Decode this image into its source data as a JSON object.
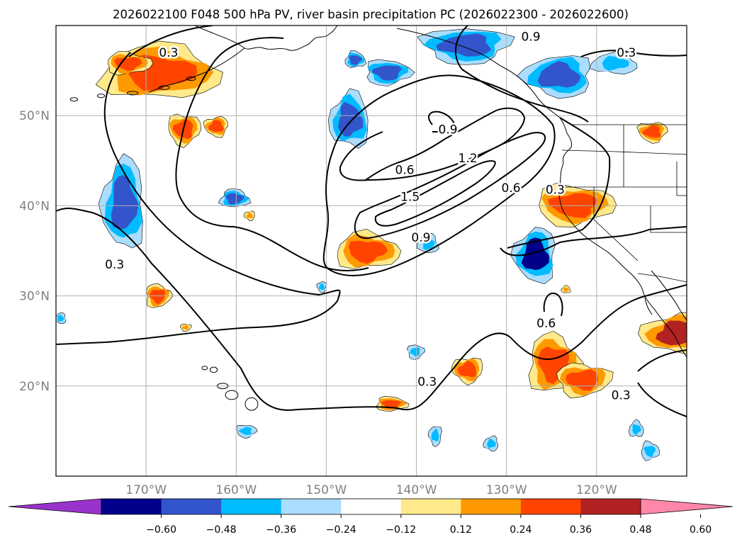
{
  "title": "2026022100 F048 500 hPa PV, river basin precipitation PC (2026022300 - 2026022600)",
  "map": {
    "lon_range": [
      -180,
      -110
    ],
    "lat_range": [
      10,
      60
    ],
    "lon_ticks": [
      {
        "value": -170,
        "label": "170°W"
      },
      {
        "value": -160,
        "label": "160°W"
      },
      {
        "value": -150,
        "label": "150°W"
      },
      {
        "value": -140,
        "label": "140°W"
      },
      {
        "value": -130,
        "label": "130°W"
      },
      {
        "value": -120,
        "label": "120°W"
      }
    ],
    "lat_ticks": [
      {
        "value": 20,
        "label": "20°N"
      },
      {
        "value": 30,
        "label": "30°N"
      },
      {
        "value": 40,
        "label": "40°N"
      },
      {
        "value": 50,
        "label": "50°N"
      }
    ],
    "gridlines": true,
    "colors": {
      "coast": "#000000",
      "grid": "#b0b0b0",
      "tick_label": "#808080",
      "contour": "#000000"
    }
  },
  "pv_contours": {
    "levels": [
      0.3,
      0.6,
      0.9,
      1.2,
      1.5
    ],
    "labels": [
      {
        "text": "0.3",
        "lon": -167.5,
        "lat": 57.0
      },
      {
        "text": "0.3",
        "lon": -173.5,
        "lat": 33.5
      },
      {
        "text": "0.3",
        "lon": -138.8,
        "lat": 20.5
      },
      {
        "text": "0.3",
        "lon": -117.3,
        "lat": 19.0
      },
      {
        "text": "0.3",
        "lon": -116.7,
        "lat": 57.0
      },
      {
        "text": "0.9",
        "lon": -127.3,
        "lat": 58.8
      },
      {
        "text": "0.9",
        "lon": -136.5,
        "lat": 48.5
      },
      {
        "text": "1.2",
        "lon": -134.3,
        "lat": 45.3
      },
      {
        "text": "0.6",
        "lon": -141.3,
        "lat": 44.0
      },
      {
        "text": "1.5",
        "lon": -140.7,
        "lat": 41.0
      },
      {
        "text": "0.6",
        "lon": -129.5,
        "lat": 42.0
      },
      {
        "text": "0.9",
        "lon": -139.5,
        "lat": 36.5
      },
      {
        "text": "0.6",
        "lon": -125.6,
        "lat": 27.0
      },
      {
        "text": "0.3",
        "lon": -124.6,
        "lat": 41.8
      }
    ]
  },
  "colorbar": {
    "tick_labels": [
      "−0.60",
      "−0.48",
      "−0.36",
      "−0.24",
      "−0.12",
      "0.12",
      "0.24",
      "0.36",
      "0.48",
      "0.60"
    ],
    "tick_values": [
      -0.6,
      -0.48,
      -0.36,
      -0.24,
      -0.12,
      0.12,
      0.24,
      0.36,
      0.48,
      0.6
    ],
    "colors": [
      "#9933cc",
      "#000088",
      "#3355cc",
      "#00bbff",
      "#aaddff",
      "#ffffff",
      "#ffe98a",
      "#ff9900",
      "#ff4400",
      "#b22222",
      "#ff88aa"
    ],
    "extend": "both"
  },
  "precip_pc": [
    {
      "lon": -168.5,
      "lat": 54.8,
      "rlon": 6.5,
      "rlat": 3.0,
      "v": 0.42
    },
    {
      "lon": -172.0,
      "lat": 55.8,
      "rlon": 2.5,
      "rlat": 1.2,
      "v": 0.42
    },
    {
      "lon": -165.8,
      "lat": 48.5,
      "rlon": 1.8,
      "rlat": 1.7,
      "v": 0.42
    },
    {
      "lon": -162.2,
      "lat": 48.8,
      "rlon": 1.3,
      "rlat": 1.1,
      "v": 0.36
    },
    {
      "lon": -172.5,
      "lat": 40.2,
      "rlon": 2.3,
      "rlat": 5.0,
      "v": -0.44
    },
    {
      "lon": -160.2,
      "lat": 40.8,
      "rlon": 1.6,
      "rlat": 1.0,
      "v": -0.4
    },
    {
      "lon": -168.7,
      "lat": 30.0,
      "rlon": 1.4,
      "rlat": 1.3,
      "v": 0.36
    },
    {
      "lon": -165.6,
      "lat": 26.5,
      "rlon": 0.6,
      "rlat": 0.4,
      "v": 0.3
    },
    {
      "lon": -158.5,
      "lat": 38.9,
      "rlon": 0.6,
      "rlat": 0.5,
      "v": 0.3
    },
    {
      "lon": -147.4,
      "lat": 49.5,
      "rlon": 2.2,
      "rlat": 3.0,
      "v": -0.38
    },
    {
      "lon": -146.8,
      "lat": 56.2,
      "rlon": 1.1,
      "rlat": 0.9,
      "v": -0.4
    },
    {
      "lon": -143.2,
      "lat": 54.8,
      "rlon": 2.5,
      "rlat": 1.4,
      "v": -0.38
    },
    {
      "lon": -134.5,
      "lat": 57.8,
      "rlon": 4.8,
      "rlat": 2.0,
      "v": -0.42
    },
    {
      "lon": -124.2,
      "lat": 54.4,
      "rlon": 3.8,
      "rlat": 2.3,
      "v": -0.44
    },
    {
      "lon": -118.0,
      "lat": 55.8,
      "rlon": 2.5,
      "rlat": 1.2,
      "v": -0.32
    },
    {
      "lon": -145.5,
      "lat": 35.0,
      "rlon": 3.5,
      "rlat": 2.0,
      "v": 0.46
    },
    {
      "lon": -122.5,
      "lat": 40.1,
      "rlon": 4.3,
      "rlat": 2.2,
      "v": 0.44
    },
    {
      "lon": -113.8,
      "lat": 48.2,
      "rlon": 1.6,
      "rlat": 1.1,
      "v": 0.38
    },
    {
      "lon": -126.8,
      "lat": 34.5,
      "rlon": 2.3,
      "rlat": 3.0,
      "v": -0.52
    },
    {
      "lon": -138.7,
      "lat": 35.8,
      "rlon": 1.1,
      "rlat": 1.1,
      "v": -0.32
    },
    {
      "lon": -124.8,
      "lat": 22.5,
      "rlon": 2.8,
      "rlat": 3.2,
      "v": 0.4
    },
    {
      "lon": -121.5,
      "lat": 20.7,
      "rlon": 3.0,
      "rlat": 1.8,
      "v": 0.4
    },
    {
      "lon": -134.3,
      "lat": 21.8,
      "rlon": 1.7,
      "rlat": 1.4,
      "v": 0.44
    },
    {
      "lon": -110.8,
      "lat": 25.8,
      "rlon": 4.2,
      "rlat": 2.2,
      "v": 0.5
    },
    {
      "lon": -123.4,
      "lat": 30.7,
      "rlon": 0.5,
      "rlat": 0.4,
      "v": 0.3
    },
    {
      "lon": -142.8,
      "lat": 18.0,
      "rlon": 1.7,
      "rlat": 0.8,
      "v": 0.4
    },
    {
      "lon": -140.1,
      "lat": 23.8,
      "rlon": 0.9,
      "rlat": 0.8,
      "v": -0.26
    },
    {
      "lon": -137.9,
      "lat": 14.5,
      "rlon": 0.7,
      "rlat": 1.1,
      "v": -0.32
    },
    {
      "lon": -131.7,
      "lat": 13.6,
      "rlon": 0.8,
      "rlat": 0.8,
      "v": -0.3
    },
    {
      "lon": -115.6,
      "lat": 15.2,
      "rlon": 0.8,
      "rlat": 0.9,
      "v": -0.28
    },
    {
      "lon": -114.1,
      "lat": 12.8,
      "rlon": 1.0,
      "rlat": 1.0,
      "v": -0.3
    },
    {
      "lon": -158.9,
      "lat": 15.0,
      "rlon": 1.1,
      "rlat": 0.7,
      "v": -0.34
    },
    {
      "lon": -150.5,
      "lat": 31.0,
      "rlon": 0.5,
      "rlat": 0.6,
      "v": -0.26
    },
    {
      "lon": -179.5,
      "lat": 27.5,
      "rlon": 0.6,
      "rlat": 0.6,
      "v": -0.28
    }
  ]
}
